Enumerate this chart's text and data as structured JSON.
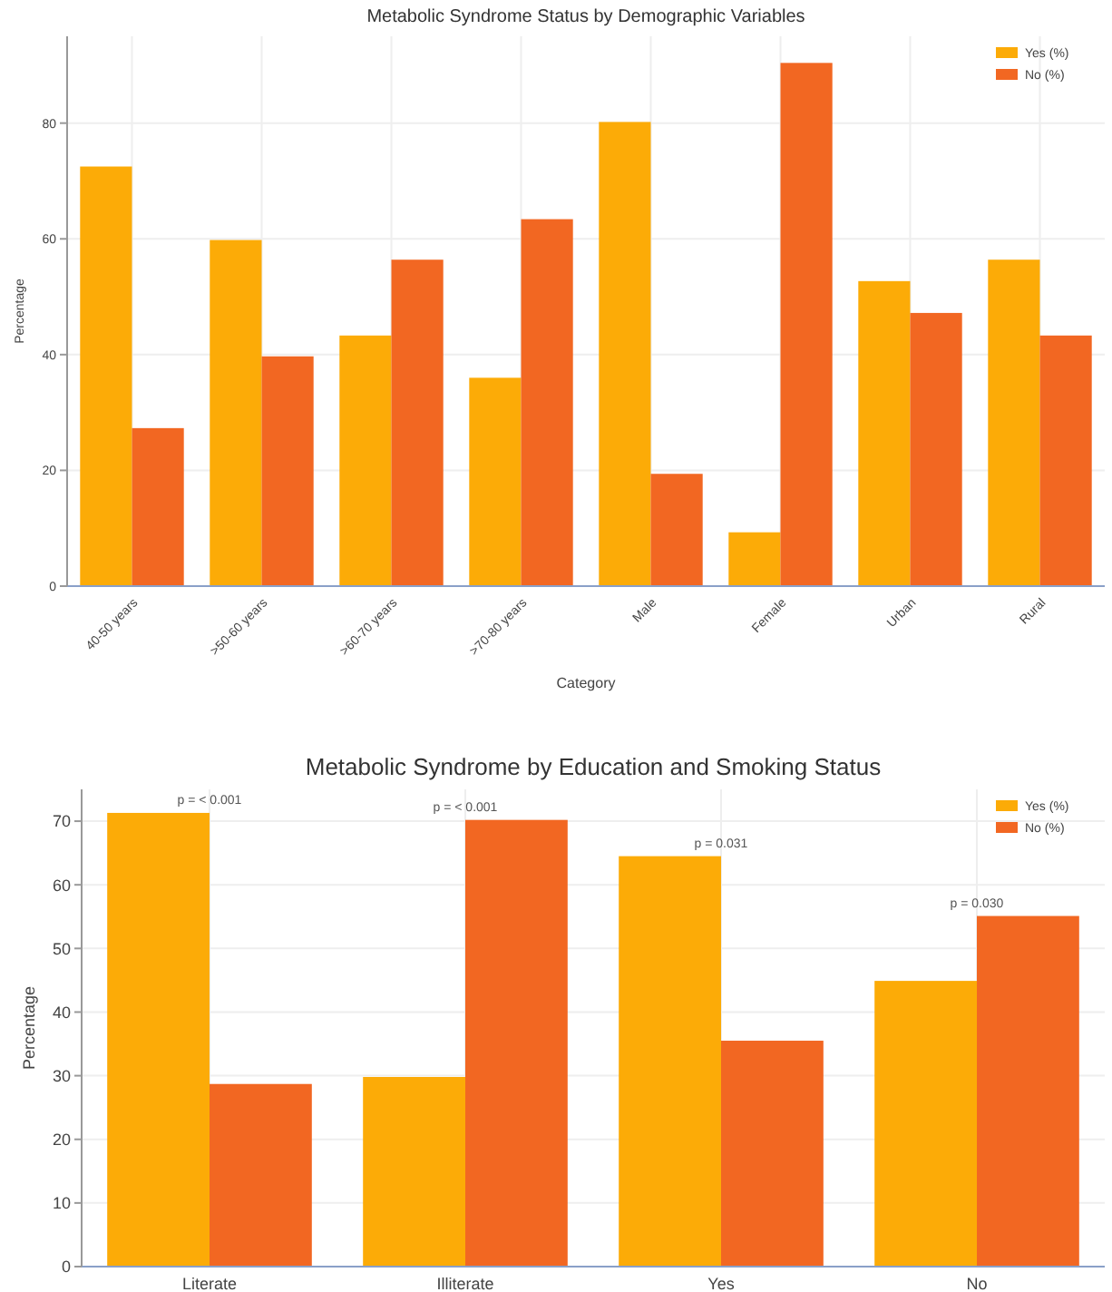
{
  "chart_data": [
    {
      "type": "bar",
      "title": "Metabolic Syndrome Status by Demographic Variables",
      "xlabel": "Category",
      "ylabel": "Percentage",
      "categories": [
        "40-50 years",
        ">50-60 years",
        ">60-70 years",
        ">70-80 years",
        "Male",
        "Female",
        "Urban",
        "Rural"
      ],
      "series": [
        {
          "name": "Yes (%)",
          "color": "#fcab07",
          "values": [
            72.5,
            59.8,
            43.3,
            36,
            80.2,
            9.3,
            52.7,
            56.4
          ]
        },
        {
          "name": "No (%)",
          "color": "#f26722",
          "values": [
            27.3,
            39.7,
            56.4,
            63.4,
            19.4,
            90.4,
            47.2,
            43.3
          ]
        }
      ],
      "ylim": [
        0,
        95
      ],
      "yticks": [
        0,
        20,
        40,
        60,
        80
      ],
      "grid": true,
      "legend": "top right"
    },
    {
      "type": "bar",
      "title": "Metabolic Syndrome by Education and Smoking Status",
      "ylabel": "Percentage",
      "categories": [
        "Literate",
        "Illiterate",
        "Yes",
        "No"
      ],
      "series": [
        {
          "name": "Yes (%)",
          "color": "#fcab07",
          "values": [
            71.3,
            29.8,
            64.5,
            44.9
          ]
        },
        {
          "name": "No (%)",
          "color": "#f26722",
          "values": [
            28.7,
            70.2,
            35.5,
            55.1
          ]
        }
      ],
      "ylim": [
        0,
        75
      ],
      "yticks": [
        0,
        10,
        20,
        30,
        40,
        50,
        60,
        70
      ],
      "grid": true,
      "legend": "top right",
      "annotations": [
        {
          "text": "p = < 0.001",
          "x": "Literate",
          "y": 71.3
        },
        {
          "text": "p = < 0.001",
          "x": "Illiterate",
          "y": 70.2
        },
        {
          "text": "p = 0.031",
          "x": "Yes",
          "y": 64.5
        },
        {
          "text": "p = 0.030",
          "x": "No",
          "y": 55.1
        }
      ]
    }
  ]
}
